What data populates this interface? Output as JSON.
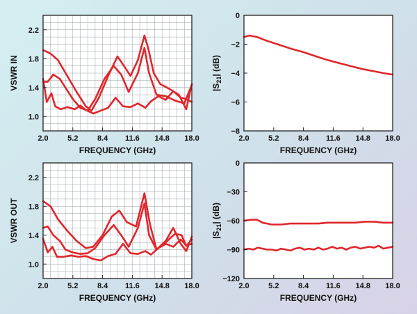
{
  "chart_data": [
    {
      "type": "line",
      "xlabel": "FREQUENCY (GHz)",
      "ylabel": "VSWR IN",
      "xlim": [
        2.0,
        18.0
      ],
      "ylim": [
        0.8,
        2.4
      ],
      "xticks": [
        "2.0",
        "5.2",
        "8.4",
        "11.6",
        "14.8",
        "18.0"
      ],
      "yticks": [
        "1.0",
        "1.4",
        "1.8",
        "2.2"
      ],
      "ytick_values": [
        1.0,
        1.4,
        1.8,
        2.2
      ],
      "grid": true,
      "line_color": "#e0262b",
      "series": [
        {
          "x": [
            2.0,
            2.8,
            3.6,
            4.6,
            5.6,
            6.6,
            7.2,
            8.0,
            9.0,
            10.0,
            10.7,
            11.4,
            12.2,
            12.9,
            13.3,
            13.9,
            14.6,
            15.6,
            16.6,
            17.4,
            18.0
          ],
          "values": [
            1.92,
            1.87,
            1.78,
            1.56,
            1.34,
            1.14,
            1.08,
            1.26,
            1.56,
            1.83,
            1.7,
            1.56,
            1.78,
            2.12,
            1.95,
            1.6,
            1.45,
            1.38,
            1.3,
            1.1,
            1.45
          ]
        },
        {
          "x": [
            2.0,
            2.5,
            3.1,
            3.8,
            4.4,
            5.2,
            6.0,
            6.8,
            7.6,
            8.6,
            9.6,
            10.4,
            11.2,
            12.2,
            12.9,
            13.4,
            14.2,
            15.2,
            16.2,
            17.2,
            18.0
          ],
          "values": [
            1.48,
            1.48,
            1.58,
            1.52,
            1.4,
            1.24,
            1.12,
            1.08,
            1.24,
            1.52,
            1.7,
            1.58,
            1.34,
            1.6,
            1.95,
            1.6,
            1.3,
            1.28,
            1.22,
            1.18,
            1.44
          ]
        },
        {
          "x": [
            2.0,
            2.4,
            2.9,
            3.3,
            3.9,
            4.6,
            5.4,
            6.0,
            6.6,
            7.4,
            8.2,
            9.0,
            9.8,
            10.6,
            11.4,
            12.2,
            13.0,
            13.6,
            14.4,
            15.2,
            16.0,
            16.8,
            17.4,
            18.0
          ],
          "values": [
            1.52,
            1.2,
            1.32,
            1.14,
            1.1,
            1.13,
            1.1,
            1.15,
            1.09,
            1.04,
            1.08,
            1.12,
            1.26,
            1.14,
            1.13,
            1.18,
            1.12,
            1.21,
            1.28,
            1.23,
            1.35,
            1.26,
            1.24,
            1.2
          ]
        }
      ]
    },
    {
      "type": "line",
      "xlabel": "FREQUENCY (GHz)",
      "ylabel": "|S21| (dB)",
      "xlim": [
        2.0,
        18.0
      ],
      "ylim": [
        -8,
        0
      ],
      "xticks": [
        "2.0",
        "5.2",
        "8.4",
        "11.6",
        "14.8",
        "18.0"
      ],
      "yticks": [
        "0",
        "−2",
        "−4",
        "−6",
        "−8"
      ],
      "ytick_values": [
        0,
        -2,
        -4,
        -6,
        -8
      ],
      "grid": false,
      "line_color": "#e0262b",
      "series": [
        {
          "x": [
            2.0,
            2.6,
            3.4,
            4.4,
            5.6,
            7.0,
            8.4,
            9.8,
            11.0,
            12.2,
            13.4,
            14.6,
            15.8,
            17.0,
            18.0
          ],
          "values": [
            -1.5,
            -1.4,
            -1.5,
            -1.75,
            -2.0,
            -2.3,
            -2.55,
            -2.85,
            -3.1,
            -3.3,
            -3.5,
            -3.7,
            -3.85,
            -4.0,
            -4.1
          ]
        }
      ]
    },
    {
      "type": "line",
      "xlabel": "FREQUENCY (GHz)",
      "ylabel": "VSWR OUT",
      "xlim": [
        2.0,
        18.0
      ],
      "ylim": [
        0.8,
        2.4
      ],
      "xticks": [
        "2.0",
        "5.2",
        "8.4",
        "11.6",
        "14.8",
        "18.0"
      ],
      "yticks": [
        "1.0",
        "1.4",
        "1.8",
        "2.2"
      ],
      "ytick_values": [
        1.0,
        1.4,
        1.8,
        2.2
      ],
      "grid": true,
      "line_color": "#e0262b",
      "series": [
        {
          "x": [
            2.0,
            2.8,
            3.6,
            4.6,
            5.6,
            6.6,
            7.4,
            8.4,
            9.4,
            10.2,
            11.0,
            12.0,
            12.9,
            13.5,
            14.2,
            15.2,
            16.0,
            16.8,
            17.4,
            18.0
          ],
          "values": [
            1.87,
            1.8,
            1.62,
            1.46,
            1.32,
            1.22,
            1.24,
            1.4,
            1.66,
            1.74,
            1.58,
            1.52,
            1.98,
            1.55,
            1.2,
            1.32,
            1.5,
            1.28,
            1.18,
            1.38
          ]
        },
        {
          "x": [
            2.0,
            2.5,
            3.1,
            3.8,
            4.4,
            5.2,
            6.0,
            6.8,
            7.6,
            8.6,
            9.6,
            10.4,
            11.2,
            12.2,
            12.9,
            13.4,
            14.2,
            15.2,
            16.2,
            16.9,
            17.4,
            18.0
          ],
          "values": [
            1.5,
            1.52,
            1.4,
            1.32,
            1.2,
            1.16,
            1.14,
            1.15,
            1.22,
            1.4,
            1.54,
            1.4,
            1.24,
            1.5,
            1.84,
            1.4,
            1.2,
            1.3,
            1.42,
            1.4,
            1.25,
            1.34
          ]
        },
        {
          "x": [
            2.0,
            2.5,
            3.0,
            3.5,
            4.2,
            5.0,
            5.8,
            6.6,
            7.4,
            8.2,
            9.0,
            9.8,
            10.6,
            11.4,
            12.2,
            13.0,
            13.6,
            14.4,
            15.2,
            16.0,
            16.8,
            17.4,
            18.0
          ],
          "values": [
            1.35,
            1.16,
            1.24,
            1.1,
            1.1,
            1.12,
            1.1,
            1.11,
            1.07,
            1.05,
            1.11,
            1.14,
            1.28,
            1.15,
            1.14,
            1.18,
            1.13,
            1.22,
            1.28,
            1.24,
            1.34,
            1.26,
            1.28
          ]
        }
      ]
    },
    {
      "type": "line",
      "xlabel": "FREQUENCY (GHz)",
      "ylabel": "|S21| (dB)",
      "xlim": [
        2.0,
        18.0
      ],
      "ylim": [
        -120,
        0
      ],
      "xticks": [
        "2.0",
        "5.2",
        "8.4",
        "11.6",
        "14.8",
        "18.0"
      ],
      "yticks": [
        "0",
        "−30",
        "−60",
        "−90",
        "−120"
      ],
      "ytick_values": [
        0,
        -30,
        -60,
        -90,
        -120
      ],
      "grid": false,
      "line_color": "#e0262b",
      "series": [
        {
          "x": [
            2.0,
            2.8,
            3.4,
            4.0,
            5.0,
            6.0,
            7.0,
            8.0,
            9.0,
            10.0,
            11.0,
            12.0,
            13.0,
            14.0,
            15.0,
            16.0,
            17.0,
            18.0
          ],
          "values": [
            -60,
            -59,
            -59,
            -62,
            -64,
            -64,
            -63,
            -63,
            -63,
            -63,
            -62,
            -62,
            -62,
            -62,
            -61,
            -61,
            -62,
            -62
          ]
        },
        {
          "x": [
            2.0,
            2.5,
            3.0,
            3.5,
            4.0,
            4.5,
            5.0,
            5.5,
            6.0,
            6.5,
            7.0,
            7.5,
            8.0,
            8.5,
            9.0,
            9.5,
            10.0,
            10.5,
            11.0,
            11.5,
            12.0,
            12.5,
            13.0,
            13.5,
            14.0,
            14.5,
            15.0,
            15.5,
            16.0,
            16.5,
            17.0,
            17.5,
            18.0
          ],
          "values": [
            -90,
            -89,
            -90,
            -88,
            -89,
            -90,
            -90,
            -91,
            -89,
            -90,
            -91,
            -89,
            -88,
            -90,
            -89,
            -90,
            -88,
            -90,
            -89,
            -87,
            -89,
            -88,
            -90,
            -88,
            -87,
            -89,
            -88,
            -87,
            -88,
            -86,
            -89,
            -88,
            -87
          ]
        }
      ]
    }
  ]
}
